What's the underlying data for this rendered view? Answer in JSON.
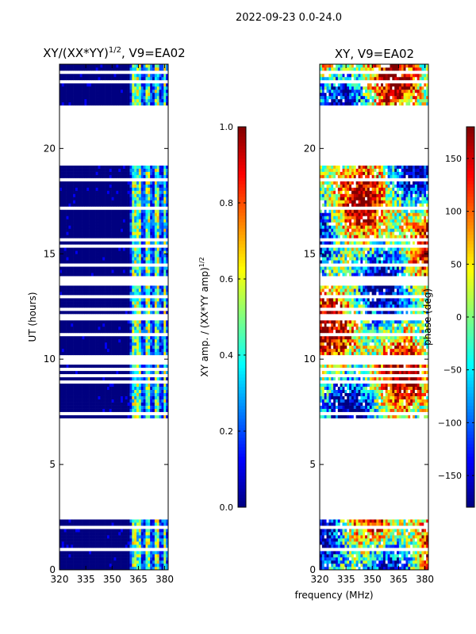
{
  "suptitle": "2022-09-23 0.0-24.0",
  "colors": {
    "background": "#ffffff",
    "mask": "#ffffff",
    "low": "#00008f",
    "frame": "#000000"
  },
  "chart_data": [
    {
      "type": "heatmap",
      "title": "XY/(XX*YY)^1/2, V9=EA02",
      "title_main": "XY/(XX*YY)",
      "title_exp": "1/2",
      "title_tail": ", V9=EA02",
      "xlabel": "",
      "ylabel": "UT (hours)",
      "xlim": [
        320,
        382
      ],
      "ylim": [
        0,
        24
      ],
      "xticks": [
        320,
        335,
        350,
        365,
        380
      ],
      "yticks": [
        0,
        5,
        10,
        15,
        20
      ],
      "colormap": "jet",
      "colorbar": {
        "label": "XY amp. / (XX*YY amp)^1/2",
        "label_main": "XY amp. / (XX*YY amp)",
        "label_exp": "1/2",
        "range": [
          0.0,
          1.0
        ],
        "ticks": [
          "0.0",
          "0.2",
          "0.4",
          "0.6",
          "0.8",
          "1.0"
        ]
      },
      "hot_band_mhz": [
        [
          361,
          366
        ],
        [
          369,
          372
        ],
        [
          374,
          377
        ],
        [
          379,
          381
        ]
      ]
    },
    {
      "type": "heatmap",
      "title": "XY, V9=EA02",
      "xlabel": "frequency (MHz)",
      "ylabel": "",
      "xlim": [
        320,
        382
      ],
      "ylim": [
        0,
        24
      ],
      "xticks": [
        320,
        335,
        350,
        365,
        380
      ],
      "yticks": [
        0,
        5,
        10,
        15,
        20
      ],
      "colormap": "jet",
      "colorbar": {
        "label": "phase (deg)",
        "range": [
          -180,
          180
        ],
        "ticks": [
          "−150",
          "−100",
          "−50",
          "0",
          "50",
          "100",
          "150"
        ]
      }
    }
  ],
  "data_segments_ut": [
    [
      0.0,
      2.5
    ],
    [
      7.1,
      9.8
    ],
    [
      10.0,
      11.9
    ],
    [
      12.1,
      13.5
    ],
    [
      14.0,
      19.2
    ],
    [
      22.0,
      24.0
    ]
  ],
  "blank_segments_ut": [
    [
      2.5,
      7.1
    ],
    [
      19.2,
      22.0
    ]
  ]
}
